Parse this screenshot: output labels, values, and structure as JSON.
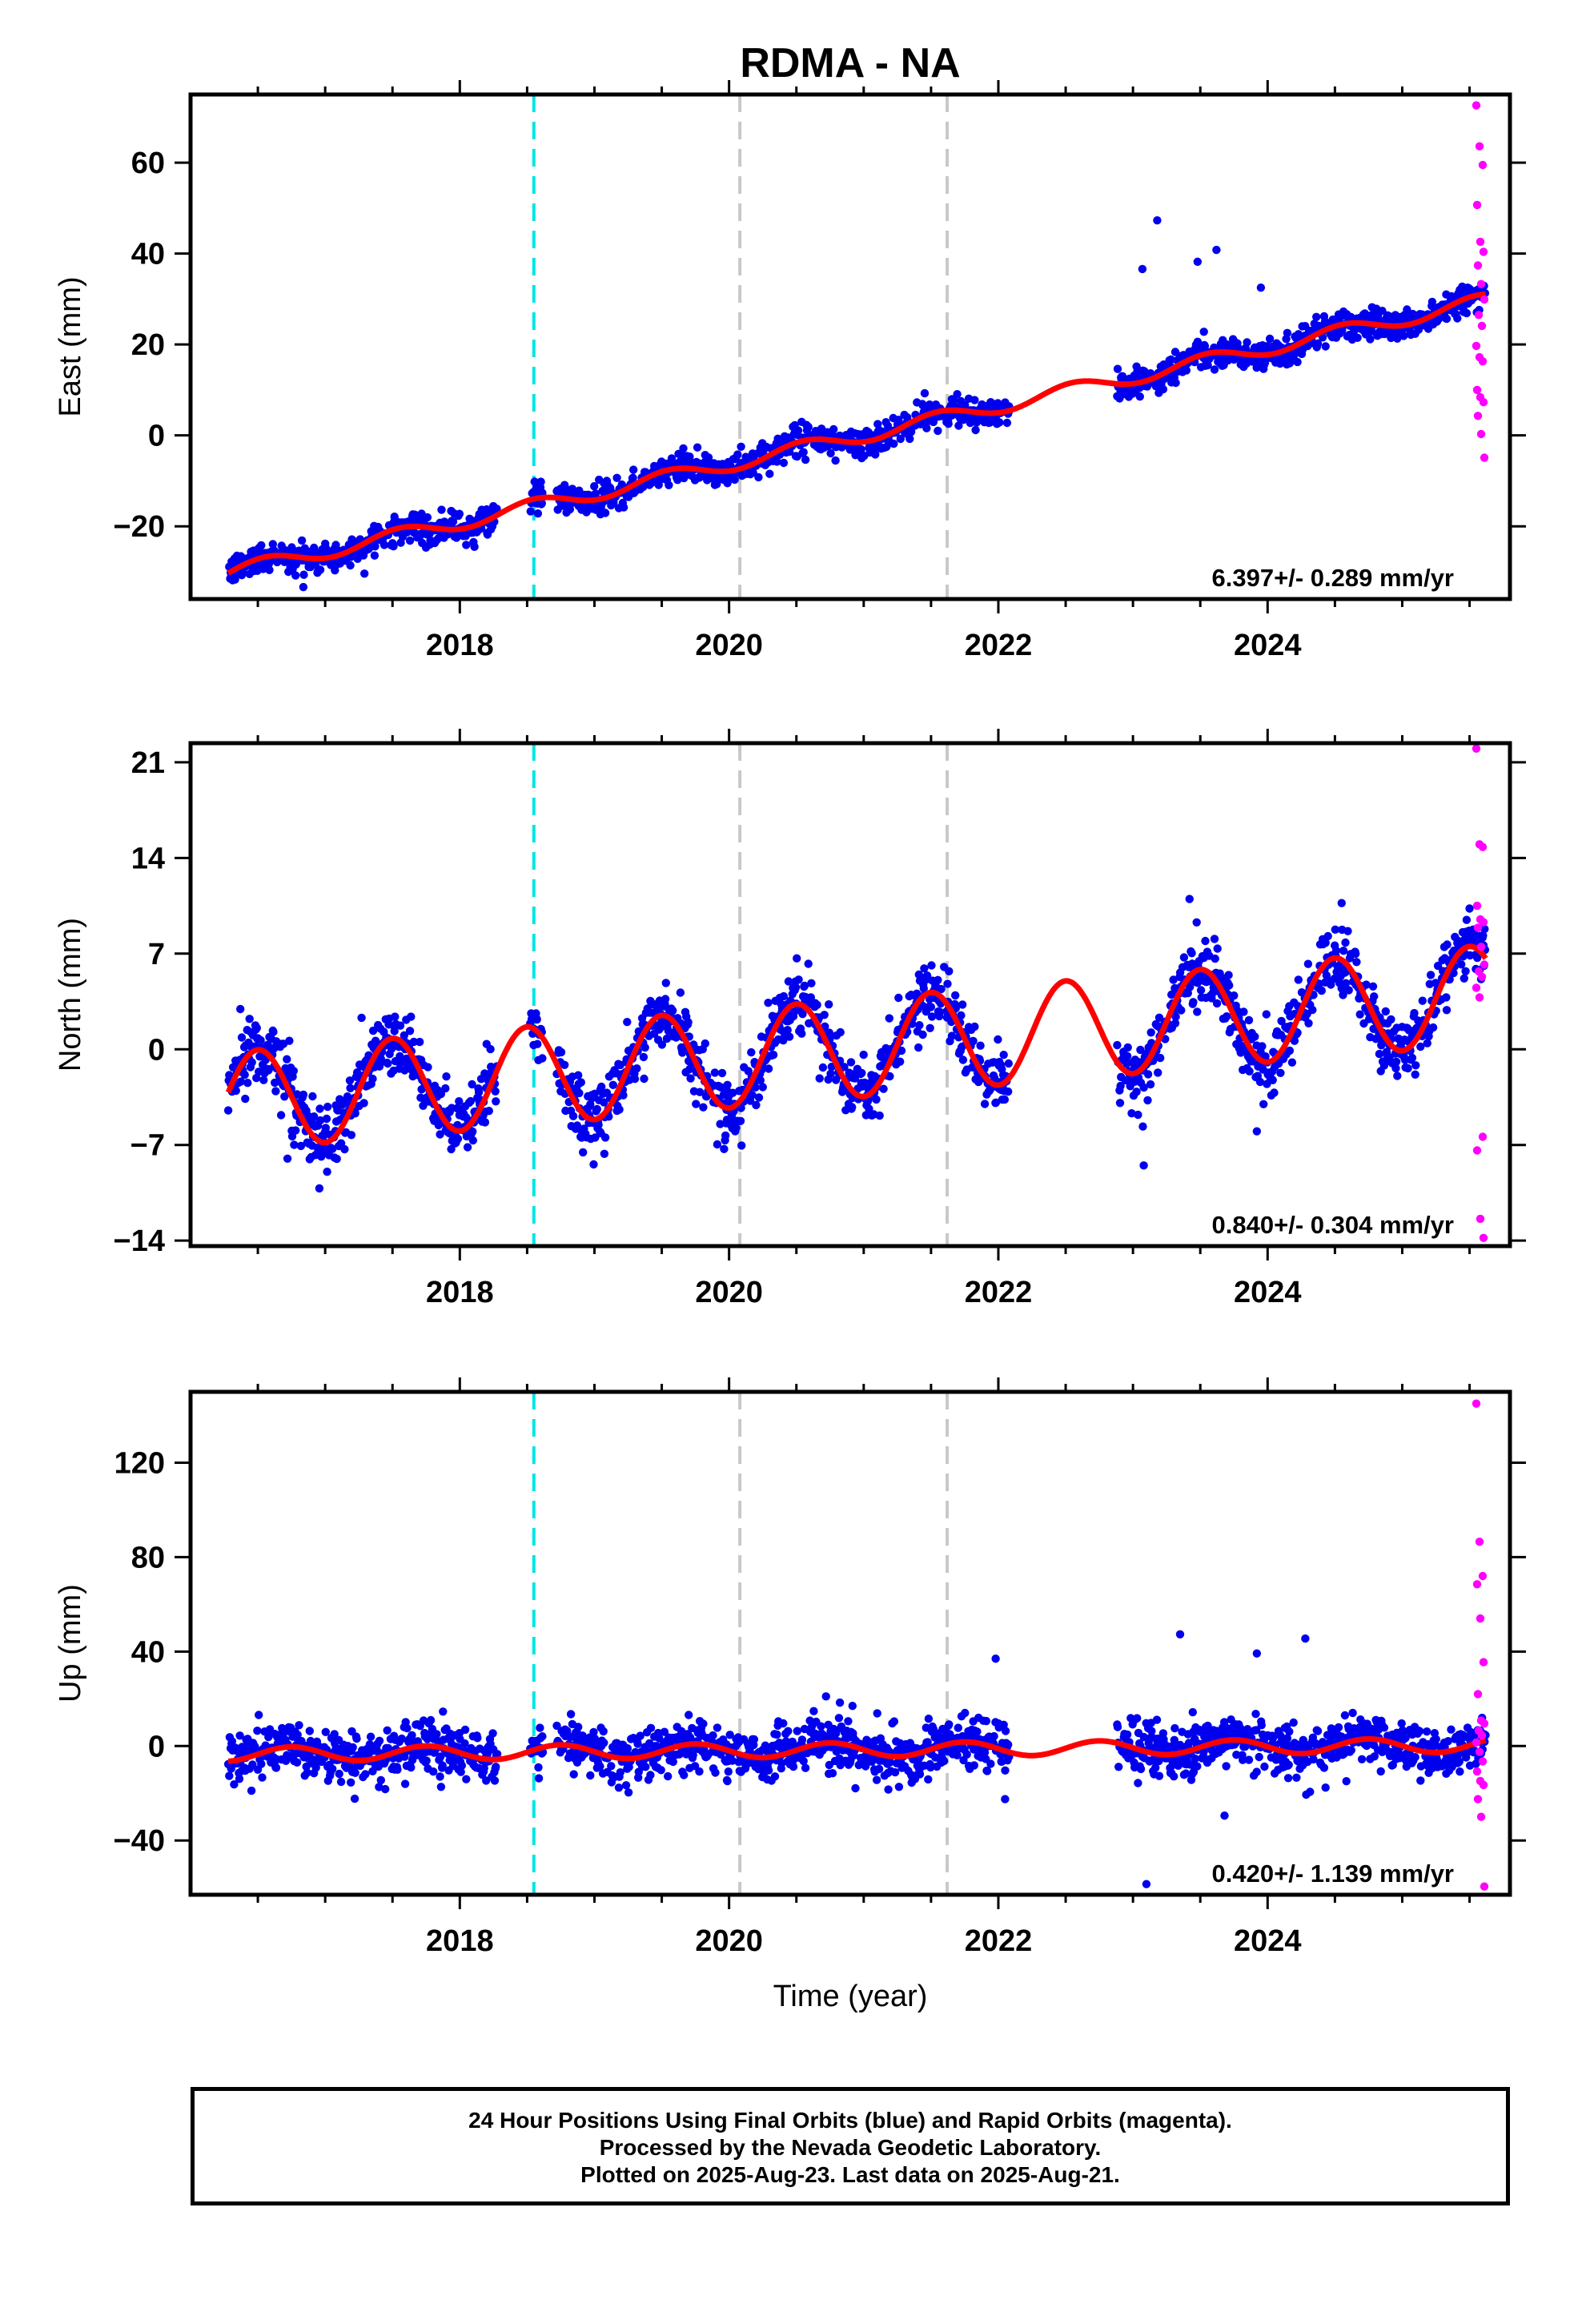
{
  "chart_data": {
    "type": "scatter",
    "title": "RDMA - NA",
    "xlabel": "Time (year)",
    "x_tick_labels": [
      "2018",
      "2020",
      "2022",
      "2024"
    ],
    "xlim": [
      2016.0,
      2025.8
    ],
    "colors": {
      "final_orbits": "#0000ee",
      "rapid_orbits": "#ff00ff",
      "model_fit": "#ff0000",
      "equipment_change": "#00e5e5",
      "other_event": "#c8c8c8"
    },
    "vertical_lines": [
      {
        "x": 2018.55,
        "kind": "equipment_change"
      },
      {
        "x": 2020.08,
        "kind": "other_event"
      },
      {
        "x": 2021.62,
        "kind": "other_event"
      }
    ],
    "panels": [
      {
        "name": "east",
        "ylabel": "East (mm)",
        "ylim": [
          -36,
          75
        ],
        "yticks": [
          -20,
          0,
          20,
          40,
          60
        ],
        "y_tick_labels": [
          "−20",
          "0",
          "20",
          "40",
          "60"
        ],
        "rate_label": "6.397+/- 0.289 mm/yr",
        "trend": {
          "rate": 6.397,
          "ref_x": 2020.0,
          "ref_y": -6.3
        },
        "seasonal": {
          "amp": 1.6,
          "phase": 0.3
        },
        "noise": 1.6,
        "outliers": [
          {
            "x": 2023.07,
            "y": 36.6
          },
          {
            "x": 2023.18,
            "y": 47.3
          },
          {
            "x": 2023.62,
            "y": 40.8
          },
          {
            "x": 2023.48,
            "y": 38.2
          },
          {
            "x": 2023.95,
            "y": 32.5
          }
        ],
        "rapid_points": [
          72.6,
          63.6,
          59.5,
          50.7,
          42.6,
          40.4,
          37.4,
          33.3,
          29.9,
          26.5,
          24.1,
          19.7,
          17.2,
          16.3,
          10.0,
          8.4,
          7.3,
          4.3,
          0.3,
          -4.9
        ]
      },
      {
        "name": "north",
        "ylabel": "North (mm)",
        "ylim": [
          -14.4,
          22.4
        ],
        "yticks": [
          -14,
          -7,
          0,
          7,
          14,
          21
        ],
        "y_tick_labels": [
          "−14",
          "−7",
          "0",
          "7",
          "14",
          "21"
        ],
        "rate_label": "0.840+/- 0.304 mm/yr",
        "trend": {
          "rate": 0.84,
          "ref_x": 2020.0,
          "ref_y": -0.7
        },
        "seasonal": {
          "amp": 3.6,
          "phase": 0.25
        },
        "noise": 1.2,
        "outliers": [
          {
            "x": 2023.08,
            "y": -8.5
          },
          {
            "x": 2023.42,
            "y": 11.0
          },
          {
            "x": 2024.55,
            "y": 10.7
          },
          {
            "x": 2023.92,
            "y": -6.0
          },
          {
            "x": 2016.72,
            "y": -8.0
          },
          {
            "x": 2025.5,
            "y": 10.3
          }
        ],
        "rapid_points": [
          22.0,
          15.0,
          14.8,
          10.5,
          9.5,
          9.3,
          8.9,
          7.5,
          6.2,
          5.7,
          5.3,
          4.5,
          3.8,
          -6.4,
          -7.4,
          -12.4,
          -13.8
        ]
      },
      {
        "name": "up",
        "ylabel": "Up (mm)",
        "ylim": [
          -63,
          150
        ],
        "yticks": [
          -40,
          0,
          40,
          80,
          120
        ],
        "y_tick_labels": [
          "−40",
          "0",
          "40",
          "80",
          "120"
        ],
        "rate_label": "0.420+/- 1.139 mm/yr",
        "trend": {
          "rate": 0.42,
          "ref_x": 2020.0,
          "ref_y": -2.0
        },
        "seasonal": {
          "amp": 3.0,
          "phase": 0.5
        },
        "noise": 5.5,
        "outliers": [
          {
            "x": 2023.1,
            "y": -58.5
          },
          {
            "x": 2021.98,
            "y": 37.0
          },
          {
            "x": 2022.05,
            "y": -22.5
          },
          {
            "x": 2023.35,
            "y": 47.3
          },
          {
            "x": 2024.28,
            "y": 45.5
          },
          {
            "x": 2023.92,
            "y": 39.2
          },
          {
            "x": 2023.68,
            "y": -29.5
          },
          {
            "x": 2020.72,
            "y": 21.0
          }
        ],
        "rapid_points": [
          145.0,
          86.5,
          72.0,
          68.5,
          54.0,
          35.5,
          22.0,
          10.8,
          9.5,
          6.5,
          4.5,
          1.5,
          -2.5,
          -6.5,
          -10.8,
          -14.8,
          -16.5,
          -22.5,
          -30.0,
          -59.5
        ]
      }
    ],
    "data_gaps": [
      [
        2018.28,
        2018.52
      ],
      [
        2018.62,
        2018.72
      ],
      [
        2022.08,
        2022.88
      ]
    ]
  },
  "footer": {
    "line1": "24 Hour Positions Using Final Orbits (blue) and Rapid Orbits (magenta).",
    "line2": "Processed by the Nevada Geodetic Laboratory.",
    "line3": "Plotted on 2025-Aug-23. Last data on 2025-Aug-21."
  }
}
